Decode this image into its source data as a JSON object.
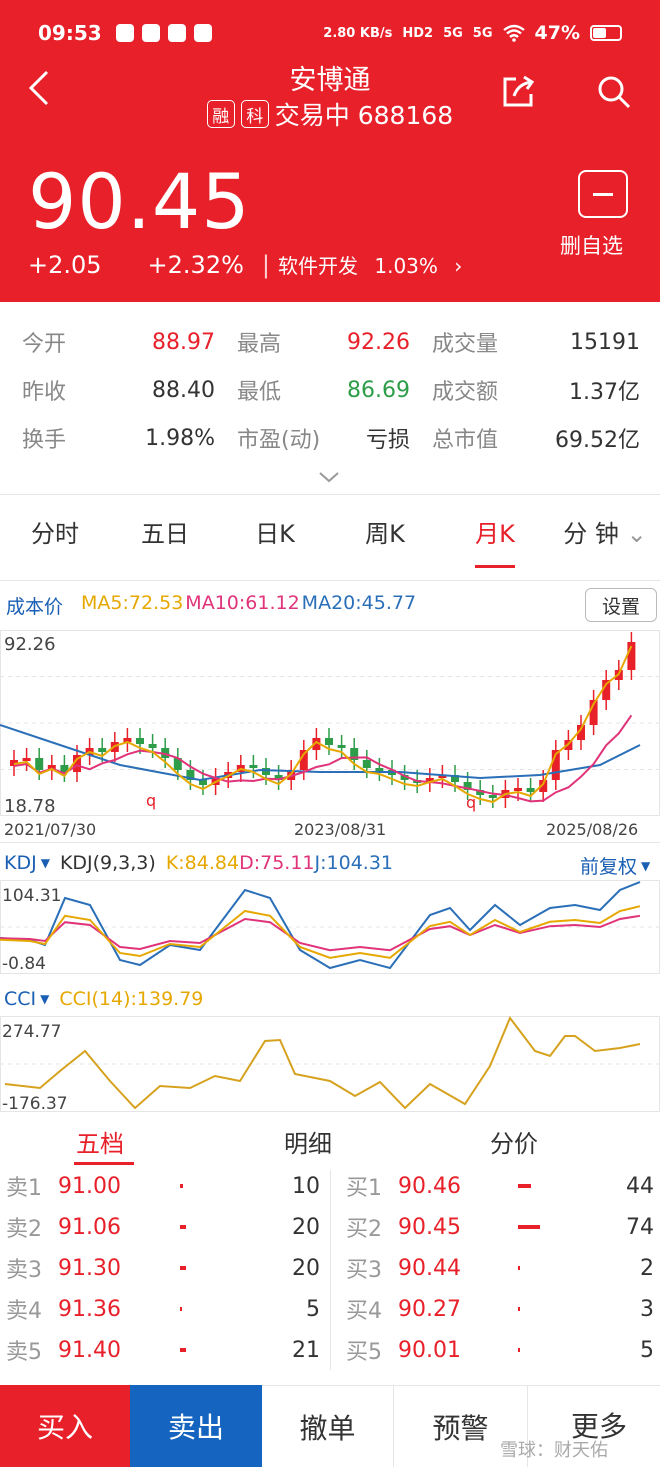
{
  "status_bar": {
    "time": "09:53",
    "net_speed": "2.80 KB/s",
    "hd": "HD2",
    "net1": "5G",
    "net2": "5G",
    "battery": "47%"
  },
  "header": {
    "title": "安博通",
    "tag1": "融",
    "tag2": "科",
    "status_code": "交易中 688168",
    "price": "90.45",
    "change": "+2.05",
    "change_pct": "+2.32%",
    "sector": "软件开发",
    "sector_pct": "1.03%",
    "fav_label": "删自选"
  },
  "quote": {
    "rows": [
      [
        {
          "label": "今开",
          "value": "88.97",
          "color": "#e8202a"
        },
        {
          "label": "最高",
          "value": "92.26",
          "color": "#e8202a"
        },
        {
          "label": "成交量",
          "value": "15191",
          "color": "#333"
        }
      ],
      [
        {
          "label": "昨收",
          "value": "88.40",
          "color": "#333"
        },
        {
          "label": "最低",
          "value": "86.69",
          "color": "#2e9d49"
        },
        {
          "label": "成交额",
          "value": "1.37亿",
          "color": "#333"
        }
      ],
      [
        {
          "label": "换手",
          "value": "1.98%",
          "color": "#333"
        },
        {
          "label": "市盈(动)",
          "value": "亏损",
          "color": "#333"
        },
        {
          "label": "总市值",
          "value": "69.52亿",
          "color": "#333"
        }
      ]
    ]
  },
  "tabs": [
    "分时",
    "五日",
    "日K",
    "周K",
    "月K",
    "分 钟"
  ],
  "active_tab": 4,
  "kline": {
    "cost_label": "成本价",
    "ma5": "MA5:72.53",
    "ma10": "MA10:61.12",
    "ma20": "MA20:45.77",
    "setting": "设置",
    "y_max": "92.26",
    "y_min": "18.78",
    "dates": [
      "2021/07/30",
      "2023/08/31",
      "2025/08/26"
    ],
    "q_marker": "q"
  },
  "kdj": {
    "name": "KDJ",
    "params": "KDJ(9,3,3)",
    "k": "K:84.84",
    "d": "D:75.11",
    "j": "J:104.31",
    "adj": "前复权",
    "y_max": "104.31",
    "y_min": "-0.84"
  },
  "cci": {
    "name": "CCI",
    "params": "CCI(14):139.79",
    "y_max": "274.77",
    "y_min": "-176.37"
  },
  "book_tabs": [
    "五档",
    "明细",
    "分价"
  ],
  "sell": [
    {
      "label": "卖1",
      "price": "91.00",
      "vol": "10"
    },
    {
      "label": "卖2",
      "price": "91.06",
      "vol": "20"
    },
    {
      "label": "卖3",
      "price": "91.30",
      "vol": "20"
    },
    {
      "label": "卖4",
      "price": "91.36",
      "vol": "5"
    },
    {
      "label": "卖5",
      "price": "91.40",
      "vol": "21"
    }
  ],
  "buy": [
    {
      "label": "买1",
      "price": "90.46",
      "vol": "44"
    },
    {
      "label": "买2",
      "price": "90.45",
      "vol": "74"
    },
    {
      "label": "买3",
      "price": "90.44",
      "vol": "2"
    },
    {
      "label": "买4",
      "price": "90.27",
      "vol": "3"
    },
    {
      "label": "买5",
      "price": "90.01",
      "vol": "5"
    }
  ],
  "bottom": [
    "买入",
    "卖出",
    "撤单",
    "预警",
    "更多"
  ],
  "watermark": "雪球：财天佑"
}
